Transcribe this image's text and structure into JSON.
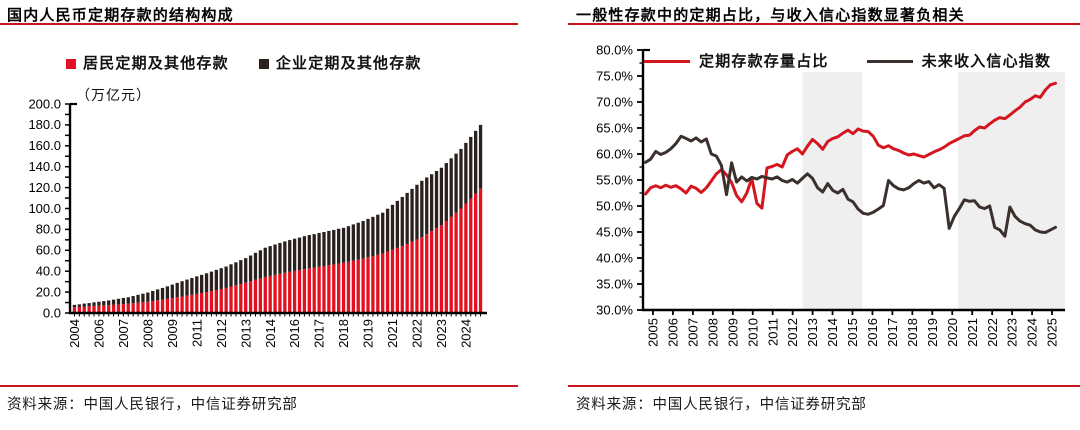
{
  "colors": {
    "rule_red": "#c9151e",
    "bar_red": "#e3101f",
    "bar_black": "#2a211f",
    "line_red": "#d4161f",
    "line_black": "#3a302d",
    "band_gray": "#efefef",
    "axis_black": "#000000"
  },
  "left": {
    "title": "国内人民币定期存款的结构构成",
    "unit_label": "（万亿元）",
    "source_label": "资料来源：中国人民银行，中信证券研究部",
    "chart_data": {
      "type": "bar",
      "stacked": true,
      "ylabel": "（万亿元）",
      "ylim": [
        0,
        200
      ],
      "ytick_step": 20,
      "ytick_minor_step": 10,
      "grid": false,
      "x_tick_labels": [
        "2004",
        "2006",
        "2007",
        "2008",
        "2009",
        "2011",
        "2012",
        "2013",
        "2014",
        "2016",
        "2017",
        "2018",
        "2019",
        "2021",
        "2022",
        "2023",
        "2024"
      ],
      "x_tick_positions": [
        0,
        5,
        10,
        15,
        20,
        25,
        30,
        35,
        40,
        45,
        50,
        55,
        60,
        65,
        70,
        75,
        80
      ],
      "series": [
        {
          "name": "居民定期及其他存款",
          "color": "#e3101f",
          "values": [
            5.5,
            5.8,
            6.2,
            6.5,
            6.8,
            7.0,
            7.3,
            7.5,
            7.8,
            8.2,
            8.5,
            8.8,
            9.3,
            9.8,
            10.3,
            10.8,
            11.5,
            12.2,
            12.8,
            13.5,
            14.3,
            15.0,
            15.8,
            16.5,
            17.4,
            18.3,
            19.1,
            20.0,
            21.0,
            22.0,
            23.0,
            24.0,
            25.3,
            26.5,
            27.8,
            29.0,
            30.4,
            31.8,
            33.1,
            34.5,
            35.5,
            36.5,
            37.5,
            38.5,
            39.4,
            40.3,
            41.1,
            42.0,
            42.8,
            43.5,
            44.3,
            45.0,
            45.8,
            46.5,
            47.3,
            48.0,
            49.0,
            50.0,
            51.0,
            52.0,
            53.3,
            54.5,
            55.8,
            57.0,
            58.8,
            60.5,
            62.3,
            64.0,
            66.1,
            68.3,
            70.4,
            72.5,
            75.4,
            78.3,
            81.1,
            84.0,
            88.0,
            92.0,
            96.0,
            100.0,
            104.8,
            109.5,
            114.3,
            119.0
          ]
        },
        {
          "name": "企业定期及其他存款",
          "color": "#2a211f",
          "values": [
            2.3,
            2.5,
            2.8,
            3.0,
            3.4,
            3.8,
            4.1,
            4.5,
            5.0,
            5.4,
            5.9,
            6.3,
            6.9,
            7.6,
            8.2,
            8.8,
            9.6,
            10.4,
            11.2,
            12.0,
            12.9,
            13.8,
            14.6,
            15.5,
            16.1,
            16.8,
            17.4,
            18.0,
            18.6,
            19.3,
            19.9,
            20.5,
            21.3,
            22.0,
            22.8,
            23.5,
            24.6,
            25.8,
            26.9,
            28.0,
            28.5,
            29.0,
            29.5,
            30.0,
            30.4,
            30.8,
            31.1,
            31.5,
            31.8,
            32.0,
            32.3,
            32.5,
            32.8,
            33.0,
            33.3,
            33.5,
            34.1,
            34.8,
            35.4,
            36.0,
            36.8,
            37.5,
            38.3,
            39.0,
            41.0,
            43.0,
            45.0,
            47.0,
            48.8,
            50.5,
            52.3,
            54.0,
            54.3,
            54.5,
            54.8,
            55.0,
            55.5,
            56.0,
            56.5,
            57.0,
            58.0,
            59.0,
            60.0,
            61.0
          ]
        }
      ]
    }
  },
  "right": {
    "title": "一般性存款中的定期占比，与收入信心指数显著负相关",
    "source_label": "资料来源：中国人民银行，中信证券研究部",
    "chart_data": {
      "type": "line",
      "ylim": [
        30,
        80
      ],
      "ytick_step": 5,
      "ytick_minor_step": 2.5,
      "ytick_format": "percent_1dp",
      "grid": false,
      "legend_position": "top-inside",
      "x_tick_labels": [
        "2005",
        "2006",
        "2007",
        "2008",
        "2009",
        "2010",
        "2011",
        "2012",
        "2013",
        "2014",
        "2015",
        "2016",
        "2017",
        "2018",
        "2019",
        "2020",
        "2021",
        "2022",
        "2023",
        "2024",
        "2025"
      ],
      "shaded_bands": [
        {
          "from_year_offset": 8,
          "to_year_offset": 11,
          "note": "2013-2016",
          "color": "#efefef"
        },
        {
          "from_year_offset": 15.79,
          "to_year_offset": "end",
          "note": "2020Q4-2025",
          "color": "#efefef"
        }
      ],
      "series": [
        {
          "name": "定期存款存量占比",
          "color": "#d4161f",
          "values": [
            52.3,
            53.5,
            53.9,
            53.5,
            54.0,
            53.6,
            53.9,
            53.3,
            52.5,
            53.8,
            53.4,
            52.6,
            53.5,
            54.8,
            56.2,
            57.0,
            56.0,
            54.5,
            52.0,
            50.8,
            52.5,
            55.3,
            50.5,
            49.6,
            57.3,
            57.6,
            58.0,
            57.5,
            59.8,
            60.5,
            61.0,
            60.0,
            61.5,
            62.8,
            62.0,
            60.9,
            62.4,
            63.0,
            63.3,
            64.0,
            64.6,
            63.9,
            64.8,
            64.4,
            64.3,
            63.4,
            61.7,
            61.2,
            61.6,
            61.0,
            60.7,
            60.2,
            59.8,
            60.0,
            59.7,
            59.4,
            59.9,
            60.4,
            60.8,
            61.3,
            62.0,
            62.5,
            63.0,
            63.5,
            63.6,
            64.5,
            65.2,
            65.0,
            65.8,
            66.5,
            67.0,
            66.8,
            67.5,
            68.3,
            69.0,
            70.0,
            70.5,
            71.2,
            70.9,
            72.3,
            73.3,
            73.6
          ]
        },
        {
          "name": "未来收入信心指数",
          "color": "#3a302d",
          "values": [
            58.4,
            59.0,
            60.5,
            59.9,
            60.3,
            61.0,
            62.0,
            63.4,
            63.0,
            62.5,
            63.1,
            62.3,
            62.9,
            60.0,
            59.6,
            57.8,
            52.2,
            58.3,
            54.6,
            55.6,
            54.8,
            55.5,
            55.2,
            55.7,
            55.4,
            55.2,
            55.6,
            54.9,
            54.6,
            55.1,
            54.4,
            55.3,
            56.2,
            55.3,
            53.5,
            52.7,
            54.3,
            53.0,
            52.5,
            53.2,
            51.3,
            50.8,
            49.4,
            48.6,
            48.4,
            48.8,
            49.4,
            50.1,
            54.9,
            53.9,
            53.3,
            53.1,
            53.5,
            54.3,
            54.9,
            54.4,
            54.7,
            53.5,
            54.1,
            53.4,
            45.7,
            48.0,
            49.5,
            51.2,
            50.9,
            51.0,
            49.8,
            49.5,
            50.0,
            45.9,
            45.4,
            44.2,
            49.8,
            48.0,
            47.1,
            46.6,
            46.3,
            45.4,
            45.0,
            44.9,
            45.4,
            45.9
          ]
        }
      ]
    }
  }
}
